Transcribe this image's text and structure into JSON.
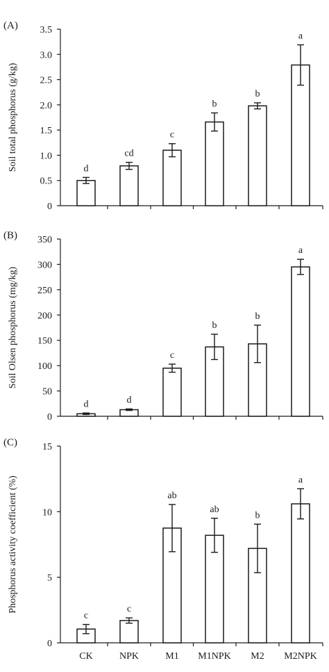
{
  "categories": [
    "CK",
    "NPK",
    "M1",
    "M1NPK",
    "M2",
    "M2NPK"
  ],
  "chart_data": [
    {
      "type": "bar",
      "panel_label": "(A)",
      "ylabel": "Soil total phosphorus (g/kg)",
      "ylim": [
        0,
        3.5
      ],
      "yticks": [
        "0",
        "0.5",
        "1.0",
        "1.5",
        "2.0",
        "2.5",
        "3.0",
        "3.5"
      ],
      "ytick_values": [
        0,
        0.5,
        1.0,
        1.5,
        2.0,
        2.5,
        3.0,
        3.5
      ],
      "categories": [
        "CK",
        "NPK",
        "M1",
        "M1NPK",
        "M2",
        "M2NPK"
      ],
      "values": [
        0.5,
        0.79,
        1.1,
        1.66,
        1.98,
        2.79
      ],
      "errors": [
        0.06,
        0.07,
        0.13,
        0.18,
        0.06,
        0.4
      ],
      "significance": [
        "d",
        "cd",
        "c",
        "b",
        "b",
        "a"
      ]
    },
    {
      "type": "bar",
      "panel_label": "(B)",
      "ylabel": "Soil Olsen phosphorus (mg/kg)",
      "ylim": [
        0,
        350
      ],
      "yticks": [
        "0",
        "50",
        "100",
        "150",
        "200",
        "250",
        "300",
        "350"
      ],
      "ytick_values": [
        0,
        50,
        100,
        150,
        200,
        250,
        300,
        350
      ],
      "categories": [
        "CK",
        "NPK",
        "M1",
        "M1NPK",
        "M2",
        "M2NPK"
      ],
      "values": [
        5,
        13,
        95,
        137,
        143,
        295
      ],
      "errors": [
        1.5,
        1.5,
        8,
        25,
        37,
        15
      ],
      "significance": [
        "d",
        "d",
        "c",
        "b",
        "b",
        "a"
      ]
    },
    {
      "type": "bar",
      "panel_label": "(C)",
      "ylabel": "Phosphorus activity coefficient (%)",
      "ylim": [
        0,
        15
      ],
      "yticks": [
        "0",
        "5",
        "10",
        "15"
      ],
      "ytick_values": [
        0,
        5,
        10,
        15
      ],
      "categories": [
        "CK",
        "NPK",
        "M1",
        "M1NPK",
        "M2",
        "M2NPK"
      ],
      "values": [
        1.05,
        1.7,
        8.75,
        8.2,
        7.2,
        10.6
      ],
      "errors": [
        0.35,
        0.2,
        1.8,
        1.3,
        1.85,
        1.15
      ],
      "significance": [
        "c",
        "c",
        "ab",
        "ab",
        "b",
        "a"
      ]
    }
  ]
}
